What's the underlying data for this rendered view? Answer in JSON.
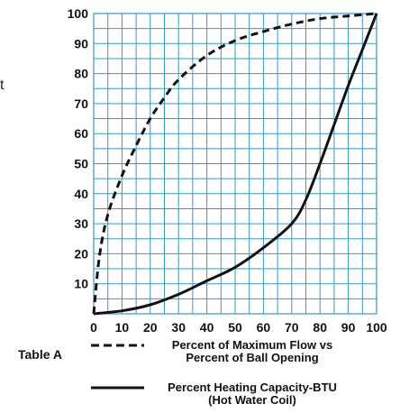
{
  "chart_data": {
    "type": "line",
    "xlim": [
      0,
      100
    ],
    "ylim": [
      0,
      100
    ],
    "x_ticks": [
      "0",
      "10",
      "20",
      "30",
      "40",
      "50",
      "60",
      "70",
      "80",
      "90",
      "100"
    ],
    "y_ticks": [
      "10",
      "20",
      "30",
      "40",
      "50",
      "60",
      "70",
      "80",
      "90",
      "100"
    ],
    "grid": true,
    "legend_title": "Table A",
    "series": [
      {
        "name_lines": [
          "Percent of Maximum Flow vs",
          "Percent of Ball Opening"
        ],
        "style": "dashed",
        "color": "#111111",
        "points": [
          [
            0,
            0
          ],
          [
            2,
            19
          ],
          [
            5,
            33
          ],
          [
            10,
            46
          ],
          [
            15,
            56
          ],
          [
            20,
            65
          ],
          [
            25,
            72
          ],
          [
            30,
            78
          ],
          [
            40,
            86
          ],
          [
            50,
            91
          ],
          [
            60,
            94
          ],
          [
            70,
            96.5
          ],
          [
            80,
            98.3
          ],
          [
            90,
            99.2
          ],
          [
            100,
            100
          ]
        ]
      },
      {
        "name_lines": [
          "Percent Heating Capacity-BTU",
          "(Hot Water Coil)"
        ],
        "style": "solid",
        "color": "#111111",
        "points": [
          [
            0,
            0
          ],
          [
            10,
            1
          ],
          [
            20,
            3
          ],
          [
            30,
            6.5
          ],
          [
            40,
            11
          ],
          [
            50,
            15.5
          ],
          [
            60,
            22
          ],
          [
            70,
            30
          ],
          [
            75,
            38
          ],
          [
            80,
            50
          ],
          [
            85,
            63
          ],
          [
            90,
            76
          ],
          [
            95,
            88
          ],
          [
            100,
            100
          ]
        ]
      }
    ]
  },
  "fragment": "t"
}
